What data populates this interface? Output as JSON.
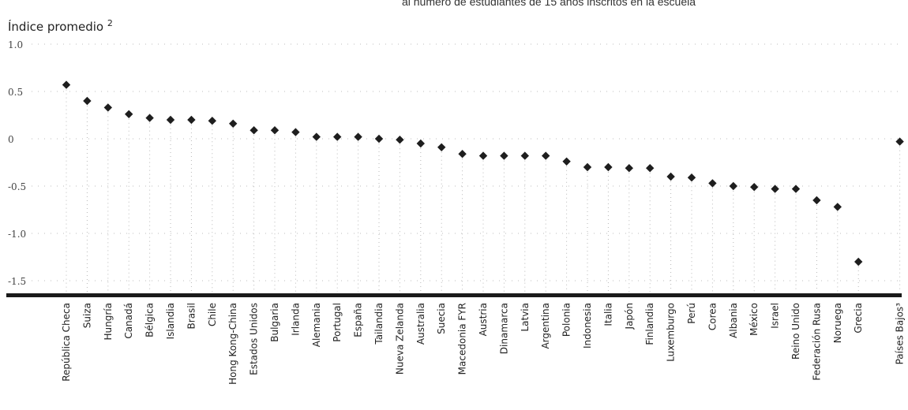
{
  "chart_data": {
    "type": "scatter",
    "title": "al número de estudiantes de 15 años inscritos en la escuela",
    "ylabel": "Índice promedio",
    "ylabel_note": "2",
    "ylim": [
      -1.6,
      1.1
    ],
    "yticks": [
      1.0,
      0.5,
      0,
      -0.5,
      -1.0,
      -1.5
    ],
    "ytick_labels": [
      "1.0",
      "0.5",
      "0",
      "-0.5",
      "-1.0",
      "-1.5"
    ],
    "grid": true,
    "categories": [
      "República Checa",
      "Suiza",
      "Hungría",
      "Canadá",
      "Bélgica",
      "Islandia",
      "Brasil",
      "Chile",
      "Hong Kong-China",
      "Estados Unidos",
      "Bulgaria",
      "Irlanda",
      "Alemania",
      "Portugal",
      "España",
      "Tailandia",
      "Nueva Zelanda",
      "Australia",
      "Suecia",
      "Macedonia FYR",
      "Austria",
      "Dinamarca",
      "Latvia",
      "Argentina",
      "Polonia",
      "Indonesia",
      "Italia",
      "Japón",
      "Finlandia",
      "Luxemburgo",
      "Perú",
      "Corea",
      "Albania",
      "México",
      "Israel",
      "Reino Unido",
      "Federación Rusa",
      "Noruega",
      "Grecia",
      "Países Bajos³"
    ],
    "values": [
      0.57,
      0.4,
      0.33,
      0.26,
      0.22,
      0.2,
      0.2,
      0.19,
      0.16,
      0.09,
      0.09,
      0.07,
      0.02,
      0.02,
      0.02,
      0.0,
      -0.01,
      -0.05,
      -0.09,
      -0.16,
      -0.18,
      -0.18,
      -0.18,
      -0.18,
      -0.24,
      -0.3,
      -0.3,
      -0.31,
      -0.31,
      -0.4,
      -0.41,
      -0.47,
      -0.5,
      -0.51,
      -0.53,
      -0.53,
      -0.65,
      -0.72,
      -1.3,
      -0.03
    ]
  }
}
